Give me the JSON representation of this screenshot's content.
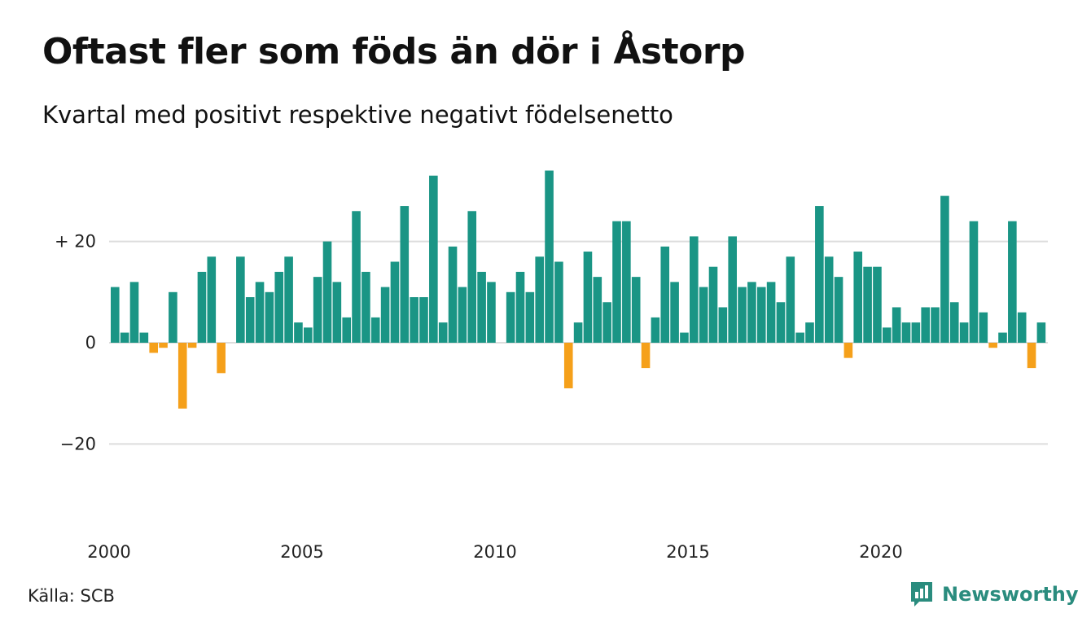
{
  "header": {
    "title": "Oftast fler som föds än dör i Åstorp",
    "subtitle": "Kvartal med positivt respektive negativt födelsenetto"
  },
  "footer": {
    "source": "Källa: SCB",
    "brand": "Newsworthy",
    "brand_icon": "newsworthy-logo-icon"
  },
  "colors": {
    "positive": "#1a9585",
    "negative": "#f5a01a",
    "grid": "#dddddd",
    "brand": "#2a8c7e"
  },
  "chart_data": {
    "type": "bar",
    "ylim": [
      -30,
      36
    ],
    "yticks": [
      {
        "value": 20,
        "label": "+ 20"
      },
      {
        "value": 0,
        "label": "0"
      },
      {
        "value": -20,
        "label": "−20"
      }
    ],
    "xticks": [
      {
        "year": 2000,
        "label": "2000"
      },
      {
        "year": 2005,
        "label": "2005"
      },
      {
        "year": 2010,
        "label": "2010"
      },
      {
        "year": 2015,
        "label": "2015"
      },
      {
        "year": 2020,
        "label": "2020"
      }
    ],
    "start_year": 2000,
    "grid": true,
    "values": [
      11,
      2,
      12,
      2,
      -2,
      -1,
      10,
      -13,
      -1,
      14,
      17,
      -6,
      0,
      17,
      9,
      12,
      10,
      14,
      17,
      4,
      3,
      13,
      20,
      12,
      5,
      26,
      14,
      5,
      11,
      16,
      27,
      9,
      9,
      33,
      4,
      19,
      11,
      26,
      14,
      12,
      0,
      10,
      14,
      10,
      17,
      34,
      16,
      -9,
      4,
      18,
      13,
      8,
      24,
      24,
      13,
      -5,
      5,
      19,
      12,
      2,
      21,
      11,
      15,
      7,
      21,
      11,
      12,
      11,
      12,
      8,
      17,
      2,
      4,
      27,
      17,
      13,
      -3,
      18,
      15,
      15,
      3,
      7,
      4,
      4,
      7,
      7,
      29,
      8,
      4,
      24,
      6,
      -1,
      2,
      24,
      6,
      -5,
      4
    ]
  }
}
